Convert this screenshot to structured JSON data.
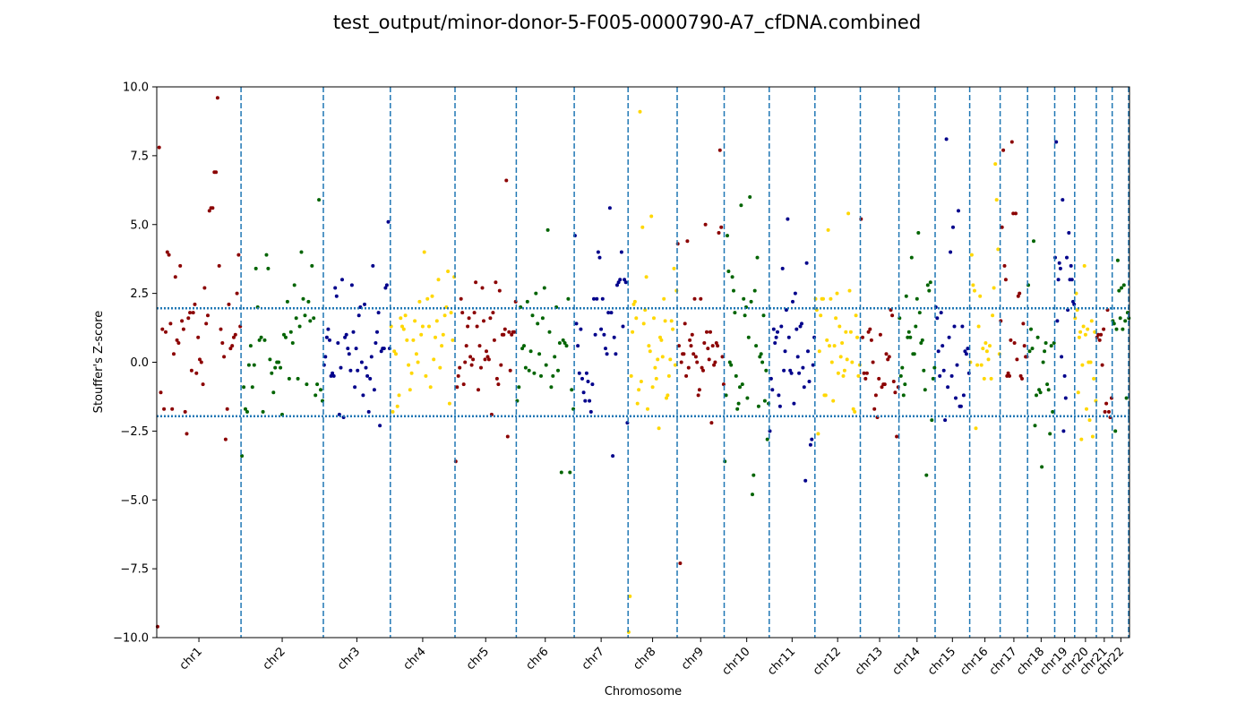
{
  "chart_data": {
    "type": "scatter",
    "title": "test_output/minor-donor-5-F005-0000790-A7_cfDNA.combined",
    "xlabel": "Chromosome",
    "ylabel": "Stouffer's Z-score",
    "ylim": [
      -10,
      10
    ],
    "yticks": [
      -10,
      -7.5,
      -5,
      -2.5,
      0,
      2.5,
      5,
      7.5,
      10
    ],
    "ytick_labels": [
      "−10.0",
      "−7.5",
      "−5.0",
      "−2.5",
      "0.0",
      "2.5",
      "5.0",
      "7.5",
      "10.0"
    ],
    "grid": false,
    "threshold_lines": [
      1.96,
      -1.96
    ],
    "colors": {
      "chr1": "#8b0000",
      "chr2": "#006400",
      "chr3": "#00008b",
      "chr4": "#ffd700",
      "chr5": "#8b0000",
      "chr6": "#006400",
      "chr7": "#00008b",
      "chr8": "#ffd700",
      "chr9": "#8b0000",
      "chr10": "#006400",
      "chr11": "#00008b",
      "chr12": "#ffd700",
      "chr13": "#8b0000",
      "chr14": "#006400",
      "chr15": "#00008b",
      "chr16": "#ffd700",
      "chr17": "#8b0000",
      "chr18": "#006400",
      "chr19": "#00008b",
      "chr20": "#ffd700",
      "chr21": "#8b0000",
      "chr22": "#006400",
      "boundary_line": "#1f77b4",
      "threshold_line": "#1f77b4"
    },
    "chromosomes": [
      {
        "name": "chr1",
        "start": 0,
        "end": 249
      },
      {
        "name": "chr2",
        "start": 249,
        "end": 492
      },
      {
        "name": "chr3",
        "start": 492,
        "end": 690
      },
      {
        "name": "chr4",
        "start": 690,
        "end": 881
      },
      {
        "name": "chr5",
        "start": 881,
        "end": 1062
      },
      {
        "name": "chr6",
        "start": 1062,
        "end": 1233
      },
      {
        "name": "chr7",
        "start": 1233,
        "end": 1392
      },
      {
        "name": "chr8",
        "start": 1392,
        "end": 1537
      },
      {
        "name": "chr9",
        "start": 1537,
        "end": 1676
      },
      {
        "name": "chr10",
        "start": 1676,
        "end": 1809
      },
      {
        "name": "chr11",
        "start": 1809,
        "end": 1944
      },
      {
        "name": "chr12",
        "start": 1944,
        "end": 2078
      },
      {
        "name": "chr13",
        "start": 2078,
        "end": 2192
      },
      {
        "name": "chr14",
        "start": 2192,
        "end": 2299
      },
      {
        "name": "chr15",
        "start": 2299,
        "end": 2401
      },
      {
        "name": "chr16",
        "start": 2401,
        "end": 2491
      },
      {
        "name": "chr17",
        "start": 2491,
        "end": 2572
      },
      {
        "name": "chr18",
        "start": 2572,
        "end": 2652
      },
      {
        "name": "chr19",
        "start": 2652,
        "end": 2711
      },
      {
        "name": "chr20",
        "start": 2711,
        "end": 2775
      },
      {
        "name": "chr21",
        "start": 2775,
        "end": 2822
      },
      {
        "name": "chr22",
        "start": 2822,
        "end": 2873
      }
    ],
    "series": [
      {
        "chrom": "chr1",
        "z": [
          -9.6,
          7.8,
          -1.1,
          1.2,
          -1.7,
          1.1,
          4.0,
          3.9,
          1.4,
          -1.7,
          0.3,
          3.1,
          0.8,
          0.7,
          3.5,
          1.5,
          1.2,
          -1.8,
          -2.6,
          1.6,
          1.8,
          -0.3,
          1.8,
          2.1,
          -0.4,
          0.9,
          0.1,
          0.0,
          -0.8,
          2.7,
          1.4,
          1.7,
          5.5,
          5.6,
          5.6,
          6.9,
          6.9,
          9.6,
          3.5,
          1.2,
          0.7,
          0.2,
          -2.8,
          -1.7,
          2.1,
          0.5,
          0.6,
          0.9,
          1.0,
          2.5,
          3.9,
          1.3
        ]
      },
      {
        "chrom": "chr2",
        "z": [
          -3.4,
          -0.9,
          -1.7,
          -1.8,
          -0.1,
          0.6,
          -0.9,
          -0.1,
          3.4,
          2.0,
          0.8,
          0.9,
          -1.8,
          0.8,
          3.9,
          3.4,
          0.1,
          -0.4,
          -1.1,
          -0.2,
          0.0,
          0.0,
          -0.2,
          -1.9,
          1.0,
          0.9,
          2.2,
          -0.6,
          1.1,
          0.7,
          2.8,
          1.6,
          -0.6,
          1.3,
          4.0,
          2.3,
          1.7,
          -0.8,
          2.2,
          1.5,
          3.5,
          1.6,
          -1.2,
          -0.8,
          5.9,
          -1.0,
          -1.4
        ]
      },
      {
        "chrom": "chr3",
        "z": [
          -0.1,
          0.2,
          0.9,
          1.2,
          0.8,
          -0.5,
          -0.4,
          -0.5,
          2.7,
          2.4,
          0.7,
          -1.9,
          -0.2,
          3.0,
          -2.0,
          0.9,
          1.0,
          0.5,
          0.3,
          -0.3,
          2.8,
          1.1,
          -0.9,
          0.5,
          -0.3,
          1.7,
          2.0,
          0.0,
          -1.2,
          2.1,
          -0.2,
          -0.5,
          -1.8,
          -0.6,
          0.2,
          3.5,
          -1.0,
          0.7,
          1.1,
          1.8,
          -2.3,
          0.4,
          0.5,
          0.5,
          2.7,
          2.8,
          5.1,
          0.5
        ]
      },
      {
        "chrom": "chr4",
        "z": [
          1.3,
          -1.8,
          0.4,
          0.3,
          -1.6,
          -1.2,
          1.6,
          1.3,
          1.2,
          1.7,
          0.8,
          -0.1,
          -1.0,
          -0.4,
          0.8,
          1.5,
          0.3,
          0.0,
          2.2,
          1.0,
          1.3,
          4.0,
          -0.5,
          2.3,
          1.3,
          -0.9,
          2.4,
          0.1,
          0.9,
          1.5,
          3.0,
          -0.2,
          0.6,
          1.0,
          1.7,
          2.0,
          3.3,
          -1.5,
          1.8,
          0.8,
          3.1
        ]
      },
      {
        "chrom": "chr5",
        "z": [
          -3.6,
          -0.9,
          -0.5,
          -0.2,
          2.3,
          1.8,
          -0.8,
          0.0,
          0.6,
          1.3,
          1.6,
          0.2,
          -0.1,
          0.1,
          1.8,
          2.9,
          1.3,
          -1.0,
          0.6,
          -0.2,
          2.7,
          1.5,
          0.1,
          0.4,
          0.2,
          0.1,
          1.6,
          -1.9,
          1.8,
          0.8,
          2.9,
          -0.6,
          -0.8,
          2.6,
          -0.1,
          1.0,
          1.0,
          1.2,
          6.6,
          -2.7,
          1.1,
          -0.3,
          1.0,
          1.1,
          1.1,
          2.2
        ]
      },
      {
        "chrom": "chr6",
        "z": [
          -1.4,
          -0.9,
          2.0,
          0.5,
          0.6,
          -0.2,
          2.2,
          -0.3,
          0.4,
          1.7,
          -0.4,
          2.5,
          1.4,
          0.3,
          -0.5,
          1.6,
          2.7,
          -0.1,
          4.8,
          1.1,
          -0.9,
          -0.5,
          0.2,
          2.0,
          -0.3,
          0.7,
          -4.0,
          0.8,
          0.7,
          0.6,
          2.3,
          -4.0,
          -1.0,
          -1.7
        ]
      },
      {
        "chrom": "chr7",
        "z": [
          4.6,
          1.4,
          0.6,
          -0.4,
          1.2,
          -0.6,
          -1.1,
          -1.4,
          -0.4,
          -0.7,
          -1.4,
          -1.8,
          -0.8,
          2.3,
          1.0,
          2.3,
          4.0,
          3.8,
          1.2,
          2.3,
          1.0,
          0.5,
          0.3,
          1.8,
          5.6,
          1.8,
          -3.4,
          0.9,
          0.3,
          2.8,
          2.9,
          3.0,
          4.0,
          1.3,
          3.0,
          2.9,
          -2.2
        ]
      },
      {
        "chrom": "chr8",
        "z": [
          -9.8,
          -8.5,
          -0.5,
          1.1,
          2.1,
          2.2,
          1.6,
          -1.5,
          -1.0,
          9.1,
          -0.7,
          4.9,
          1.4,
          1.9,
          3.1,
          -1.7,
          0.6,
          0.4,
          5.3,
          -0.9,
          1.6,
          -0.2,
          -0.6,
          0.1,
          -2.4,
          0.9,
          0.8,
          0.2,
          2.3,
          1.5,
          -1.3,
          -1.2,
          -0.5,
          0.1,
          1.5,
          1.2,
          3.4,
          -0.1,
          2.6
        ]
      },
      {
        "chrom": "chr9",
        "z": [
          4.3,
          0.6,
          -7.3,
          0.0,
          0.3,
          0.3,
          1.4,
          -0.5,
          4.4,
          -0.2,
          0.8,
          0.6,
          1.0,
          0.3,
          2.3,
          0.2,
          0.0,
          -1.2,
          -1.0,
          2.3,
          -0.2,
          -0.3,
          0.7,
          5.0,
          1.1,
          0.5,
          0.1,
          1.1,
          -2.2,
          0.6,
          -0.1,
          0.0,
          0.7,
          0.6,
          4.7,
          7.7,
          4.9,
          0.2,
          -0.8
        ]
      },
      {
        "chrom": "chr10",
        "z": [
          -3.6,
          -1.2,
          4.6,
          3.3,
          0.0,
          -0.1,
          3.1,
          2.6,
          1.8,
          -0.5,
          -1.7,
          -1.5,
          -0.9,
          5.7,
          -0.8,
          2.3,
          1.7,
          2.0,
          -1.3,
          0.9,
          6.0,
          2.2,
          -4.8,
          -4.1,
          2.6,
          0.6,
          3.8,
          -1.6,
          0.2,
          0.3,
          0.0,
          1.7,
          -1.4,
          -0.3,
          -2.8,
          -1.5
        ]
      },
      {
        "chrom": "chr11",
        "z": [
          -2.5,
          -0.6,
          -1.0,
          1.2,
          0.7,
          0.9,
          1.1,
          -1.2,
          -1.6,
          1.3,
          3.4,
          -0.3,
          0.4,
          1.9,
          5.2,
          0.9,
          -0.3,
          -0.4,
          2.2,
          -1.5,
          2.5,
          1.2,
          0.2,
          -0.4,
          1.3,
          1.4,
          -0.2,
          -0.9,
          -4.3,
          3.6,
          0.4,
          -0.7,
          -3.0,
          -2.8,
          -0.1,
          0.9
        ]
      },
      {
        "chrom": "chr12",
        "z": [
          2.3,
          1.9,
          -2.6,
          0.4,
          1.7,
          2.3,
          2.3,
          -1.2,
          -1.2,
          0.8,
          4.8,
          0.6,
          2.3,
          0.0,
          -1.4,
          0.6,
          1.6,
          2.5,
          -0.4,
          1.3,
          0.2,
          0.7,
          -0.5,
          -0.3,
          1.1,
          0.1,
          5.4,
          2.6,
          1.1,
          0.0,
          -1.7,
          -1.8,
          1.7,
          0.9,
          -0.5,
          -0.1
        ]
      },
      {
        "chrom": "chr13",
        "z": [
          5.2,
          0.9,
          -0.4,
          -0.6,
          -0.4,
          1.1,
          1.2,
          0.8,
          0.0,
          -1.7,
          -1.2,
          -2.0,
          -0.6,
          1.0,
          -0.9,
          -0.8,
          -0.8,
          0.3,
          0.1,
          0.2,
          1.9,
          1.7,
          -0.7,
          -1.1,
          -2.7,
          -0.9
        ]
      },
      {
        "chrom": "chr14",
        "z": [
          1.6,
          -0.5,
          -0.2,
          -1.2,
          -0.8,
          2.4,
          0.9,
          1.1,
          0.9,
          3.8,
          0.3,
          0.3,
          1.3,
          2.3,
          4.7,
          1.8,
          0.7,
          0.8,
          -0.3,
          -1.0,
          -4.1,
          2.8,
          2.6,
          2.9,
          -2.1,
          -0.6,
          -0.2
        ]
      },
      {
        "chrom": "chr15",
        "z": [
          2.0,
          1.6,
          0.4,
          -0.5,
          1.8,
          0.6,
          -0.3,
          -2.1,
          8.1,
          -0.9,
          0.9,
          4.0,
          -0.5,
          4.9,
          1.3,
          -1.3,
          -0.1,
          5.5,
          -1.6,
          -1.6,
          1.3,
          -1.2,
          0.4,
          0.3,
          0.5,
          -0.4
        ]
      },
      {
        "chrom": "chr16",
        "z": [
          0.0,
          3.9,
          2.8,
          2.6,
          -2.4,
          -0.1,
          1.3,
          2.4,
          -0.1,
          0.5,
          -0.6,
          0.7,
          0.4,
          0.1,
          0.6,
          -0.6,
          1.7,
          2.7,
          7.2,
          5.9,
          4.1,
          0.3
        ]
      },
      {
        "chrom": "chr17",
        "z": [
          1.5,
          4.9,
          7.7,
          3.5,
          3.0,
          -0.5,
          -0.4,
          -0.5,
          0.8,
          8.0,
          5.4,
          0.7,
          5.4,
          0.1,
          2.4,
          2.5,
          -0.5,
          -0.6,
          1.4,
          0.6,
          0.2,
          0.2
        ]
      },
      {
        "chrom": "chr18",
        "z": [
          2.8,
          0.4,
          1.2,
          0.5,
          4.4,
          -2.3,
          -1.2,
          0.9,
          -1.0,
          -1.1,
          -3.8,
          0.0,
          0.4,
          0.7,
          -0.8,
          -1.0,
          -2.6,
          0.6,
          -1.8,
          0.7
        ]
      },
      {
        "chrom": "chr19",
        "z": [
          3.8,
          8.0,
          1.5,
          3.0,
          3.6,
          3.4,
          0.2,
          5.9,
          -2.5,
          -0.5,
          -1.3,
          3.8,
          1.9,
          4.7,
          3.0,
          3.5,
          3.0,
          2.2,
          2.1
        ]
      },
      {
        "chrom": "chr20",
        "z": [
          1.6,
          2.5,
          1.9,
          -1.1,
          0.9,
          1.1,
          -2.8,
          -0.1,
          1.3,
          3.5,
          1.0,
          -1.7,
          1.2,
          0.0,
          -2.1,
          0.0,
          1.5,
          -2.7,
          -0.6,
          1.1,
          -1.4
        ]
      },
      {
        "chrom": "chr21",
        "z": [
          0.9,
          1.0,
          0.8,
          1.0,
          -0.1,
          1.2,
          -1.8,
          -1.5,
          1.9,
          -1.8,
          -2.0,
          -1.3
        ]
      },
      {
        "chrom": "chr22",
        "z": [
          1.5,
          1.4,
          -2.5,
          1.2,
          3.7,
          2.6,
          1.6,
          2.7,
          1.2,
          2.8,
          1.5,
          -1.3,
          1.8,
          1.6
        ]
      }
    ]
  }
}
